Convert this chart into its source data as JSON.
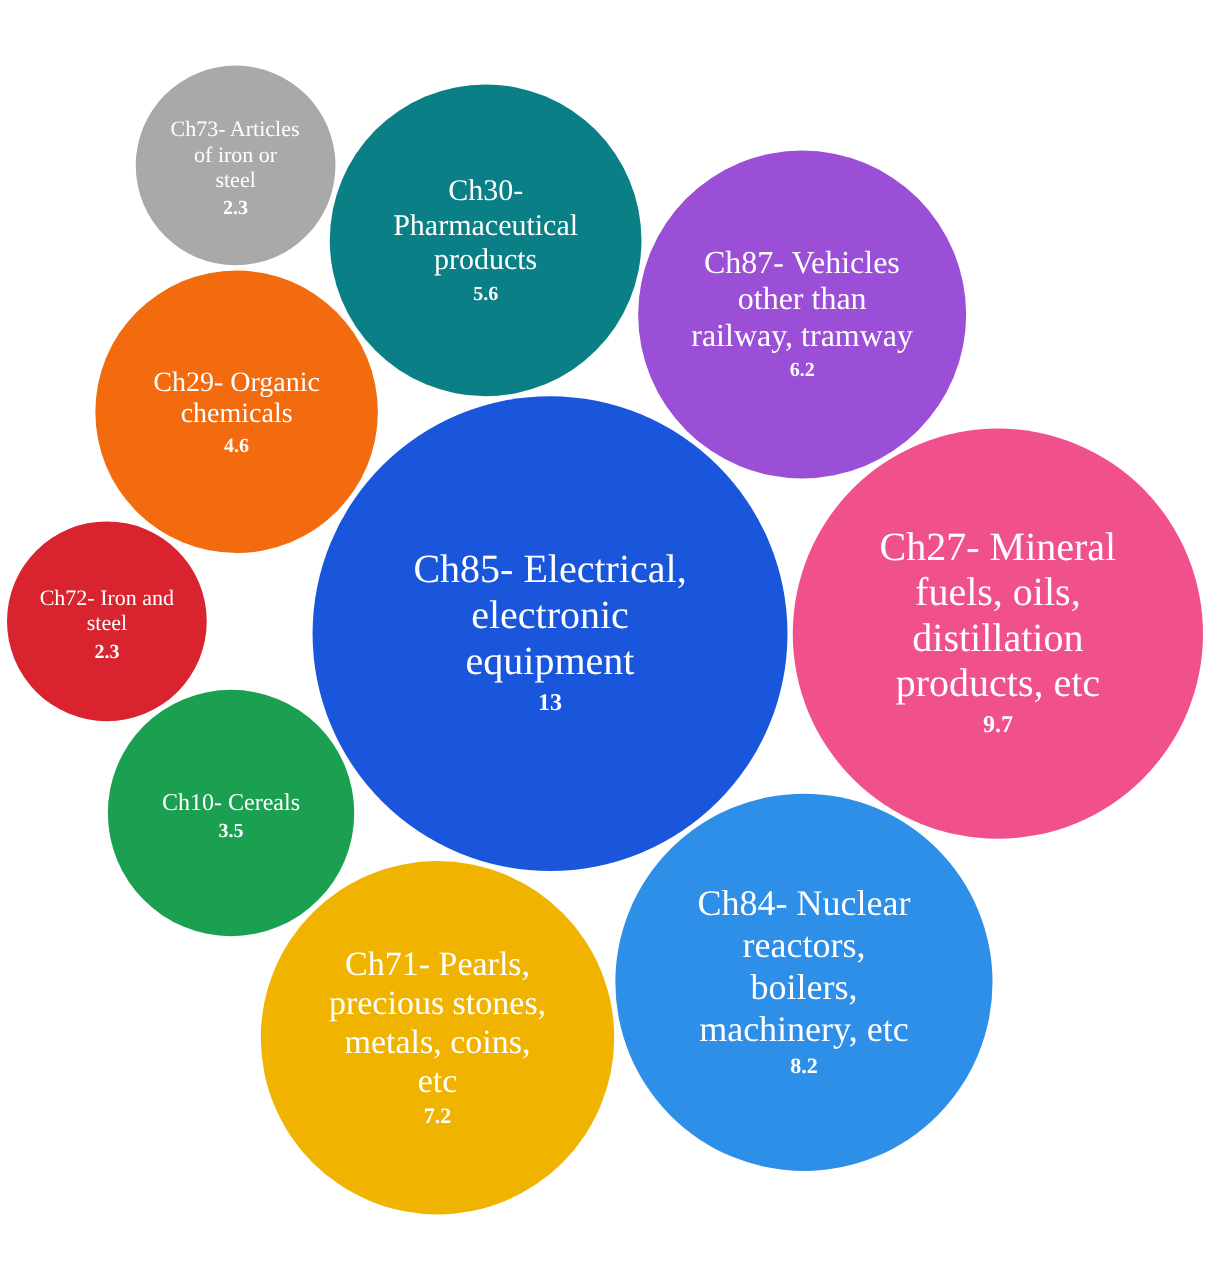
{
  "chart_data": {
    "type": "other",
    "data_labels": true,
    "categories": [
      "Ch85- Electrical, electronic equipment",
      "Ch27- Mineral fuels, oils, distillation products, etc",
      "Ch84- Nuclear reactors, boilers, machinery, etc",
      "Ch71- Pearls, precious stones, metals, coins, etc",
      "Ch87- Vehicles other than railway, tramway",
      "Ch30- Pharmaceutical products",
      "Ch29- Organic chemicals",
      "Ch10- Cereals",
      "Ch72- Iron and steel",
      "Ch73- Articles of iron or steel"
    ],
    "values": [
      13,
      9.7,
      8.2,
      7.2,
      6.2,
      5.6,
      4.6,
      3.5,
      2.3,
      2.3
    ],
    "colors": [
      "#1a56db",
      "#f0508c",
      "#2e8fe8",
      "#f0b400",
      "#9b4fd6",
      "#0a7f86",
      "#f26b0f",
      "#1aa050",
      "#d9232e",
      "#a9a9a9"
    ]
  }
}
